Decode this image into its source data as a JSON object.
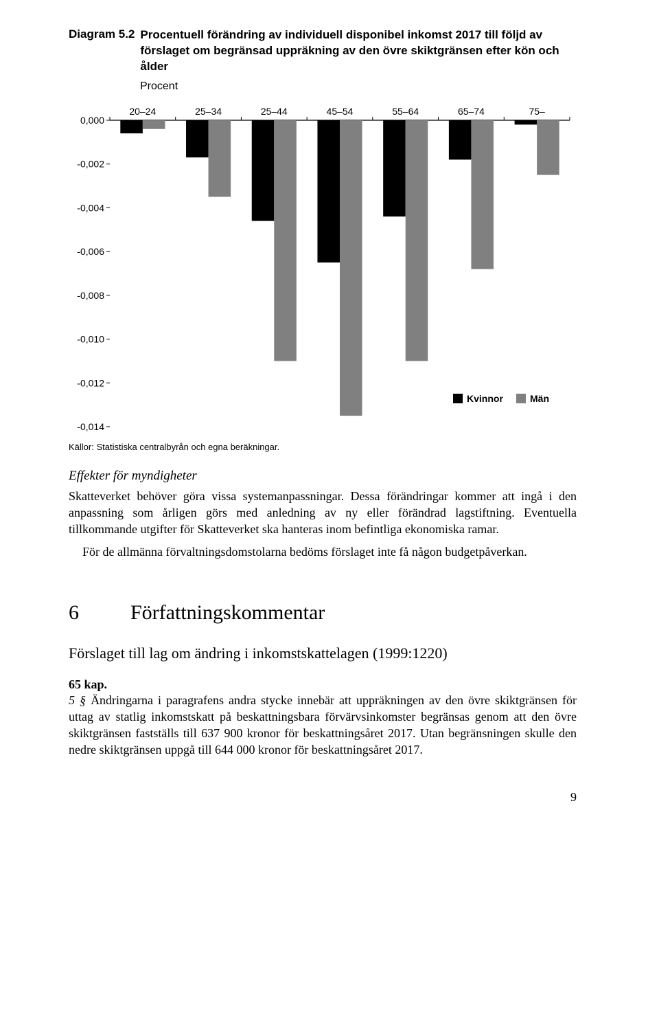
{
  "diagram": {
    "label": "Diagram 5.2",
    "title": "Procentuell förändring av individuell disponibel inkomst 2017 till följd av förslaget om begränsad uppräkning av den övre skiktgränsen efter kön och ålder",
    "subtitle": "Procent",
    "categories": [
      "20–24",
      "25–34",
      "25–44",
      "45–54",
      "55–64",
      "65–74",
      "75–"
    ],
    "series": [
      {
        "name": "Kvinnor",
        "color": "#000000",
        "values": [
          -0.0006,
          -0.0017,
          -0.0046,
          -0.0065,
          -0.0044,
          -0.0018,
          -0.0002
        ]
      },
      {
        "name": "Män",
        "color": "#808080",
        "values": [
          -0.0004,
          -0.0035,
          -0.011,
          -0.0135,
          -0.011,
          -0.0068,
          -0.0025
        ]
      }
    ],
    "y_min": -0.014,
    "y_max": 0.0,
    "y_step": 0.002,
    "y_ticks": [
      "0,000",
      "-0,002",
      "-0,004",
      "-0,006",
      "-0,008",
      "-0,010",
      "-0,012",
      "-0,014"
    ],
    "legend_label_kvinnor": "Kvinnor",
    "legend_label_man": "Män",
    "source": "Källor: Statistiska centralbyrån och egna beräkningar.",
    "axis_color": "#000000",
    "background": "#ffffff",
    "tick_fontsize": 14,
    "legend_fontsize": 14
  },
  "effects": {
    "heading": "Effekter för myndigheter",
    "para1": "Skatteverket behöver göra vissa systemanpassningar. Dessa förändringar kommer att ingå i den anpassning som årligen görs med anledning av ny eller förändrad lagstiftning. Eventuella tillkommande utgifter för Skatteverket ska hanteras inom befintliga ekonomiska ramar.",
    "para2": "För de allmänna förvaltningsdomstolarna bedöms förslaget inte få någon budgetpåverkan."
  },
  "chapter": {
    "number": "6",
    "title": "Författningskommentar",
    "subheading": "Förslaget till lag om ändring i inkomstskattelagen (1999:1220)",
    "kap_label": "65 kap.",
    "para_label": "5 §",
    "body": "Ändringarna i paragrafens andra stycke innebär att uppräkningen av den övre skiktgränsen för uttag av statlig inkomstskatt på beskattningsbara förvärvsinkomster begränsas genom att den övre skiktgränsen fastställs till 637 900 kronor för beskattningsåret 2017. Utan begränsningen skulle den nedre skiktgränsen uppgå till 644 000 kronor för beskattningsåret 2017."
  },
  "page_number": "9"
}
